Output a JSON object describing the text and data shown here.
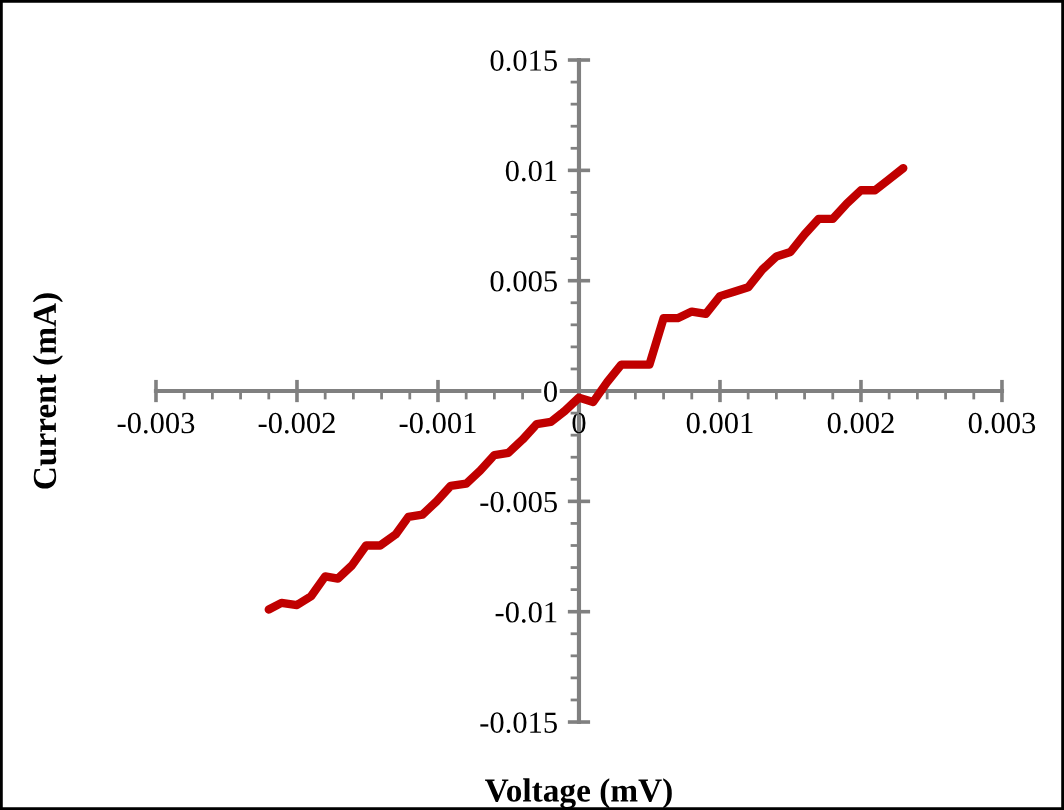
{
  "chart_data": {
    "type": "line",
    "xlabel": "Voltage (mV)",
    "ylabel": "Current (mA)",
    "x": [
      -0.0022,
      -0.00211,
      -0.002,
      -0.0019,
      -0.0018,
      -0.00171,
      -0.00161,
      -0.00151,
      -0.00141,
      -0.0013,
      -0.00121,
      -0.00111,
      -0.00101,
      -0.00091,
      -0.0008,
      -0.0007,
      -0.0006,
      -0.0005,
      -0.0004,
      -0.0003,
      -0.0002,
      -0.0001,
      0,
      0.0001,
      0.0002,
      0.0003,
      0.0005,
      0.0006,
      0.0007,
      0.0008,
      0.0009,
      0.001,
      0.0011,
      0.0012,
      0.0013,
      0.0014,
      0.0015,
      0.0016,
      0.0017,
      0.0018,
      0.0019,
      0.002,
      0.0021,
      0.0022,
      0.0023
    ],
    "series": [
      {
        "color": "#c00000",
        "values": [
          -0.0099,
          -0.0096,
          -0.0097,
          -0.0093,
          -0.0084,
          -0.0085,
          -0.0079,
          -0.007,
          -0.007,
          -0.0065,
          -0.0057,
          -0.0056,
          -0.005,
          -0.0043,
          -0.0042,
          -0.0036,
          -0.0029,
          -0.0028,
          -0.0022,
          -0.0015,
          -0.0014,
          -0.0009,
          -0.0003,
          -0.0005,
          0.0004,
          0.0012,
          0.0012,
          0.0033,
          0.0033,
          0.0036,
          0.0035,
          0.0043,
          0.0045,
          0.0047,
          0.0055,
          0.0061,
          0.0063,
          0.0071,
          0.0078,
          0.0078,
          0.0085,
          0.0091,
          0.0091,
          0.0096,
          0.0101
        ]
      }
    ],
    "xlim": [
      -0.003,
      0.003
    ],
    "xticks": [
      -0.003,
      -0.002,
      -0.001,
      0,
      0.001,
      0.002,
      0.003
    ],
    "ylim": [
      -0.015,
      0.015
    ],
    "yticks": [
      -0.015,
      -0.01,
      -0.005,
      0,
      0.005,
      0.01,
      0.015
    ],
    "grid": false,
    "legend": false,
    "marker": "none",
    "line_style": "solid"
  }
}
